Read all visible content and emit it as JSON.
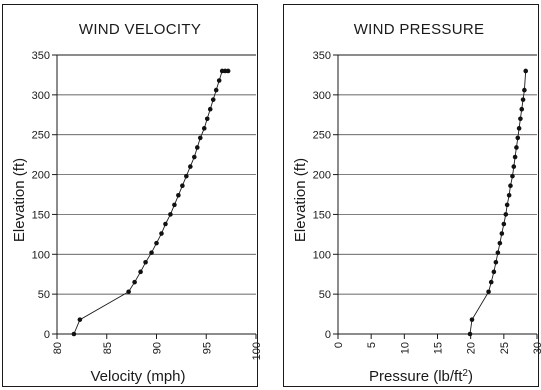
{
  "chart_data": [
    {
      "type": "line",
      "title": "WIND VELOCITY",
      "xlabel": "Velocity (mph)",
      "ylabel": "Elevation (ft)",
      "xlim": [
        80,
        100
      ],
      "ylim": [
        0,
        350
      ],
      "xticks": [
        80,
        85,
        90,
        95,
        100
      ],
      "yticks": [
        0,
        50,
        100,
        150,
        200,
        250,
        300,
        350
      ],
      "grid": "horizontal",
      "series": [
        {
          "x": [
            81.7,
            82.3,
            87.2,
            87.8,
            88.4,
            88.9,
            89.5,
            90.0,
            90.5,
            90.9,
            91.4,
            91.8,
            92.2,
            92.6,
            93.0,
            93.4,
            93.8,
            94.1,
            94.4,
            94.8,
            95.1,
            95.4,
            95.7,
            96.0,
            96.3,
            96.6,
            96.9,
            97.2
          ],
          "y": [
            0,
            18,
            53,
            65,
            78,
            90,
            102,
            114,
            126,
            138,
            150,
            162,
            174,
            186,
            198,
            210,
            222,
            234,
            246,
            258,
            270,
            282,
            294,
            306,
            318,
            330,
            330,
            330
          ]
        }
      ]
    },
    {
      "type": "line",
      "title": "WIND PRESSURE",
      "xlabel": "Pressure (lb/ft",
      "xlabel_sup": "2",
      "xlabel_end": ")",
      "ylabel": "Elevation (ft)",
      "xlim": [
        0,
        30
      ],
      "ylim": [
        0,
        350
      ],
      "xticks": [
        0,
        5,
        10,
        15,
        20,
        25,
        30
      ],
      "yticks": [
        0,
        50,
        100,
        150,
        200,
        250,
        300,
        350
      ],
      "grid": "horizontal",
      "series": [
        {
          "x": [
            19.9,
            20.2,
            22.7,
            23.1,
            23.5,
            23.8,
            24.1,
            24.4,
            24.7,
            25.0,
            25.3,
            25.5,
            25.8,
            26.0,
            26.3,
            26.5,
            26.7,
            26.9,
            27.1,
            27.3,
            27.5,
            27.7,
            27.9,
            28.1,
            28.3
          ],
          "y": [
            0,
            18,
            53,
            65,
            78,
            90,
            102,
            114,
            126,
            138,
            150,
            162,
            174,
            186,
            198,
            210,
            222,
            234,
            246,
            258,
            270,
            282,
            294,
            306,
            330
          ]
        }
      ]
    }
  ]
}
